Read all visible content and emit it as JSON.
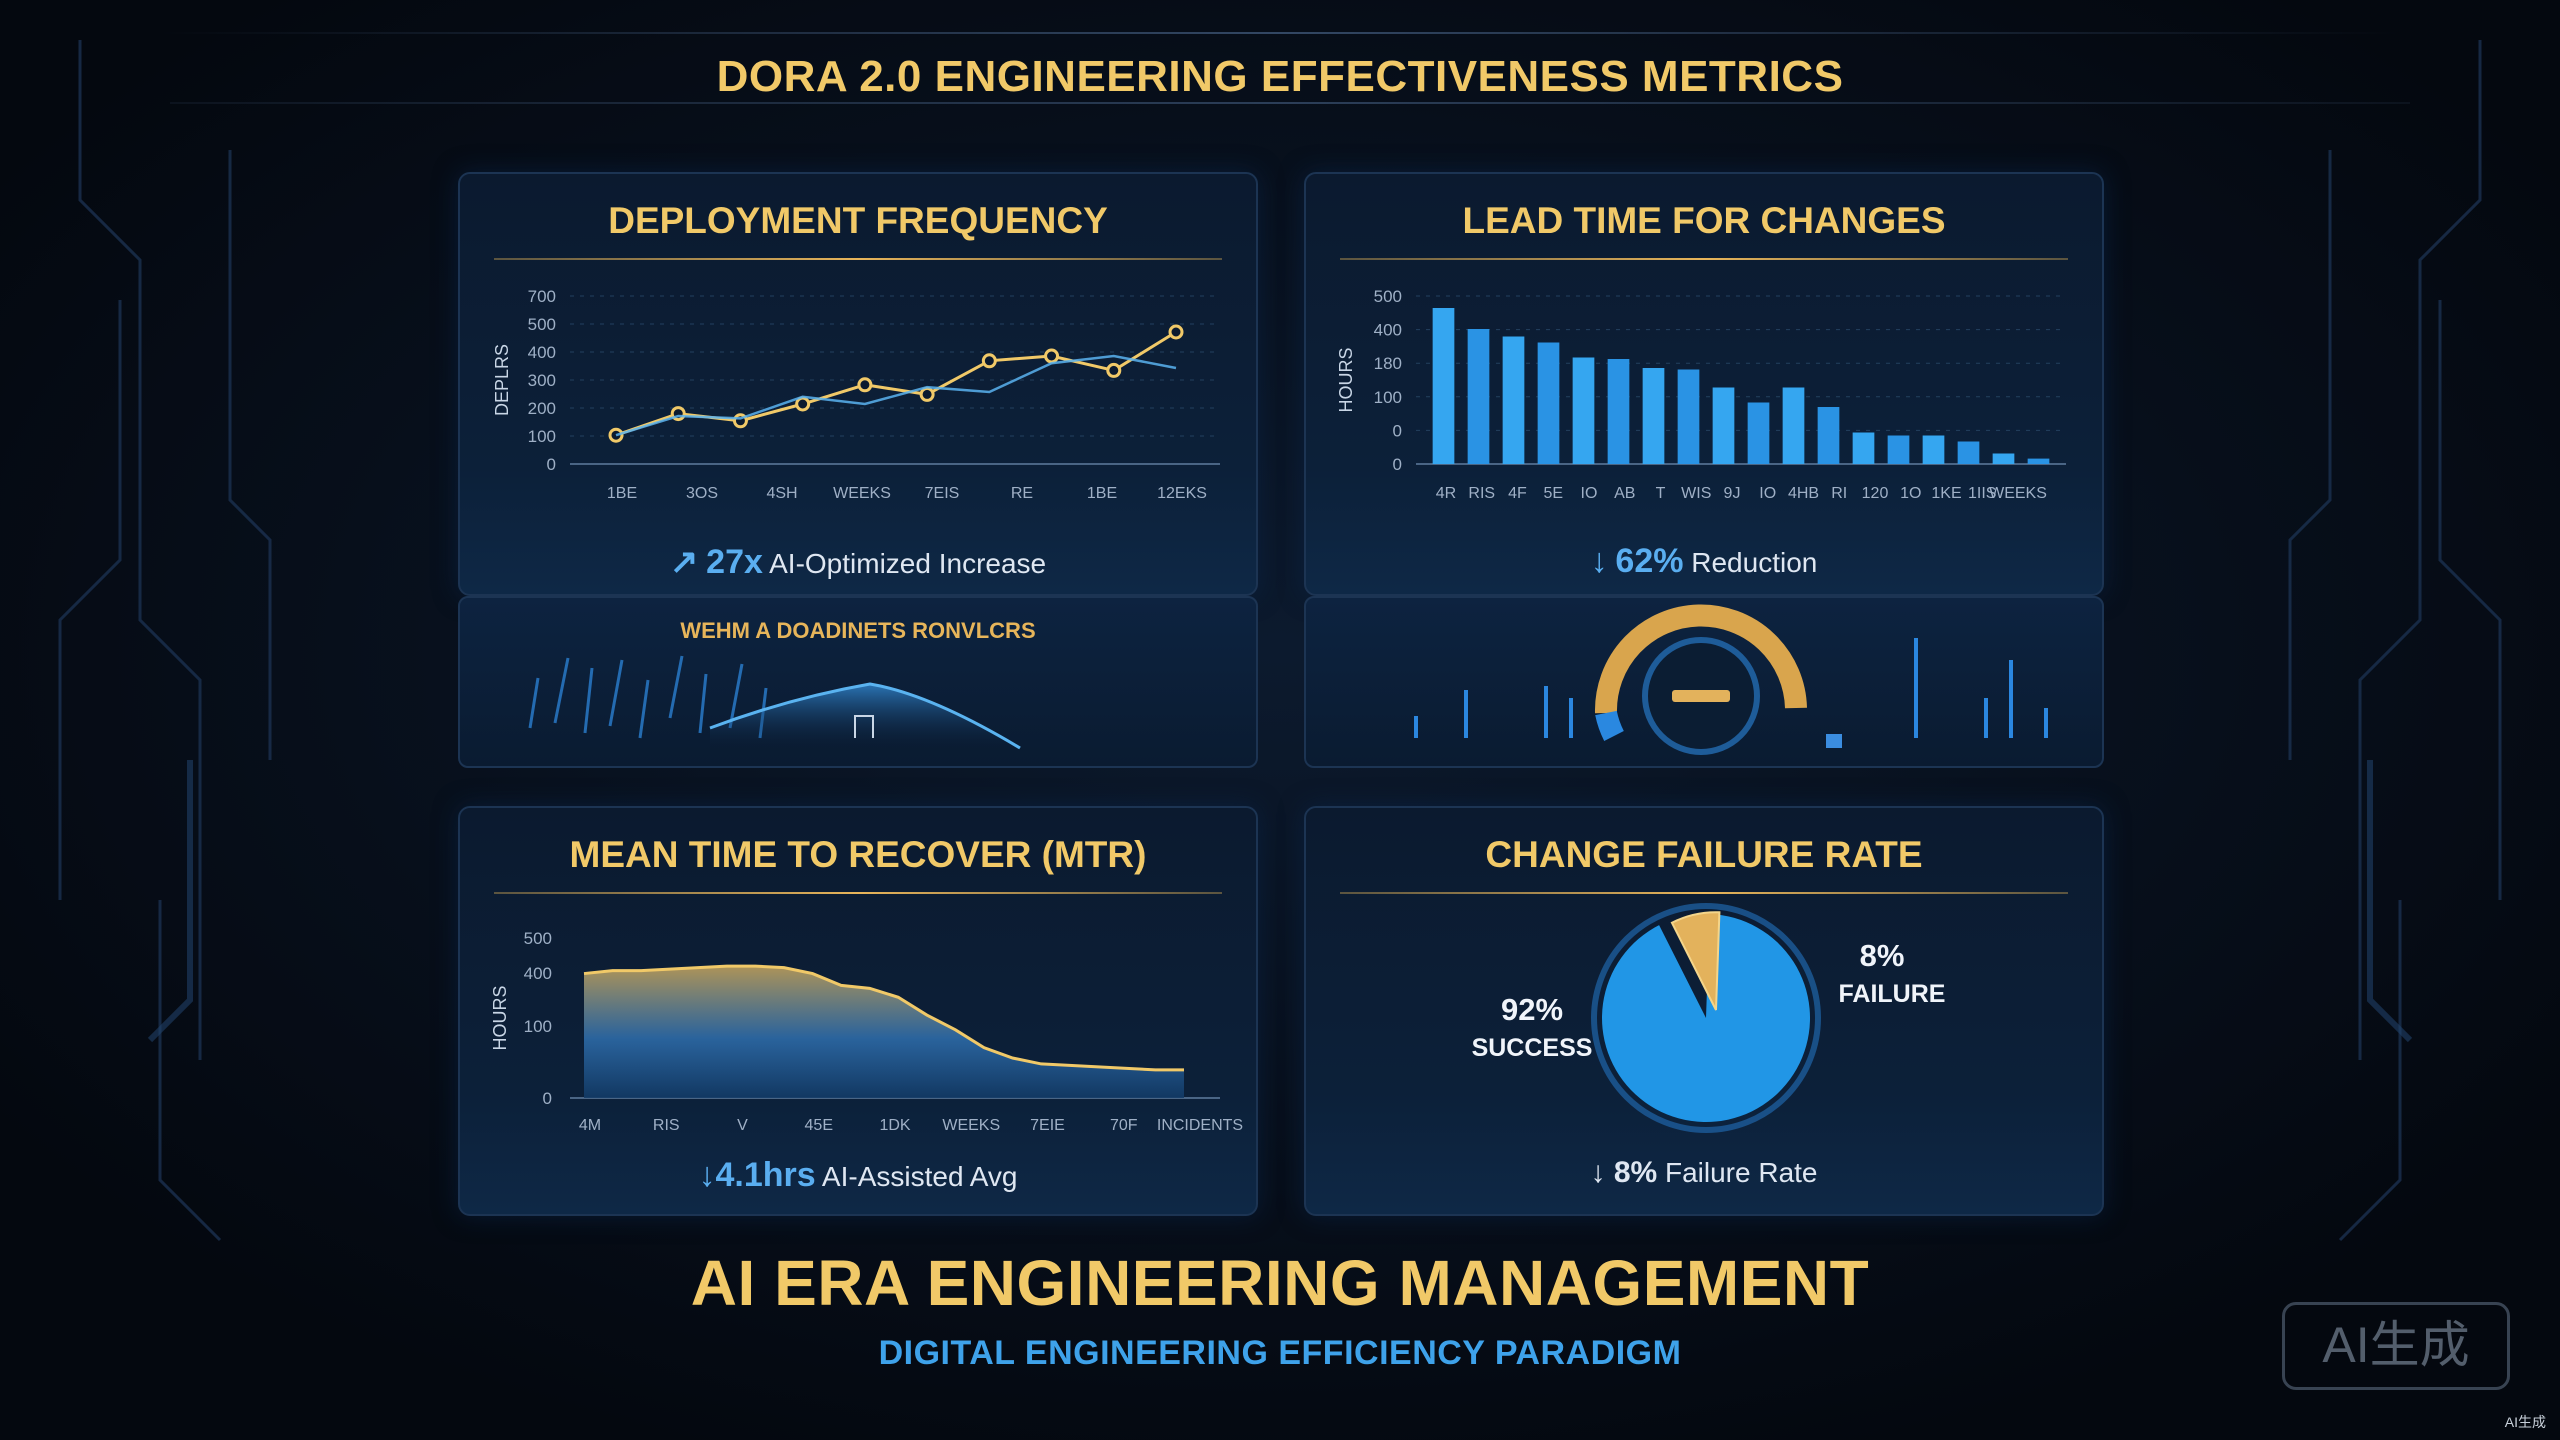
{
  "title": "DORA 2.0 ENGINEERING EFFECTIVENESS METRICS",
  "footer": {
    "title": "AI ERA ENGINEERING MANAGEMENT",
    "subtitle": "DIGITAL ENGINEERING EFFICIENCY PARADIGM"
  },
  "watermark": {
    "badge": "AI生成",
    "corner": "AI生成"
  },
  "colors": {
    "gold": "#f1c968",
    "blue": "#3ea2ea",
    "bg": "#060c16"
  },
  "panels": {
    "deploy": {
      "title": "DEPLOYMENT FREQUENCY",
      "stat_icon": "↗",
      "stat_value": "27x",
      "stat_text": "AI-Optimized Increase",
      "sub_title": "WEHM A DOADINETS RONVLCRS"
    },
    "lead": {
      "title": "LEAD TIME FOR CHANGES",
      "stat_icon": "↓",
      "stat_value": "62%",
      "stat_text": "Reduction"
    },
    "mttr": {
      "title": "MEAN TIME TO RECOVER (MTR)",
      "stat_value": "↓4.1hrs",
      "stat_text": "AI-Assisted Avg"
    },
    "cfr": {
      "title": "CHANGE FAILURE RATE",
      "stat_value": "↓ 8%",
      "stat_text": "Failure Rate"
    }
  },
  "chart_data": [
    {
      "type": "line",
      "ylabel": "DEPLRS",
      "y_ticks": [
        "700",
        "500",
        "400",
        "300",
        "200",
        "100",
        "0"
      ],
      "x_ticks": [
        "1BE",
        "3OS",
        "4SH",
        "WEEKS",
        "7EIS",
        "RE",
        "1BE",
        "12EKS"
      ],
      "series": [
        {
          "values": [
            120,
            210,
            180,
            250,
            330,
            290,
            430,
            450,
            390,
            550
          ]
        },
        {
          "values": [
            120,
            200,
            190,
            280,
            250,
            320,
            300,
            420,
            450,
            400
          ]
        }
      ],
      "ylim": [
        0,
        700
      ],
      "grid": true
    },
    {
      "type": "bar",
      "ylabel": "HOURS",
      "y_ticks": [
        "500",
        "400",
        "180",
        "100",
        "0",
        "0"
      ],
      "x_ticks": [
        "4R",
        "RIS",
        "4F",
        "5E",
        "IO",
        "AB",
        "T",
        "WIS",
        "9J",
        "IO",
        "4HB",
        "RI",
        "120",
        "1O",
        "1KE",
        "1IIS",
        "WEEKS"
      ],
      "values": [
        520,
        450,
        425,
        405,
        355,
        350,
        320,
        315,
        255,
        205,
        255,
        190,
        105,
        95,
        95,
        75,
        35,
        18
      ],
      "ylim": [
        0,
        560
      ],
      "grid": true
    },
    {
      "type": "area",
      "ylabel": "HOURS",
      "y_ticks": [
        "500",
        "400",
        "100",
        "0"
      ],
      "x_ticks": [
        "4M",
        "RIS",
        "V",
        "45E",
        "1DK",
        "WEEKS",
        "7EIE",
        "70F",
        "INCIDENTS"
      ],
      "values": [
        420,
        430,
        430,
        435,
        440,
        445,
        445,
        440,
        420,
        380,
        370,
        340,
        280,
        230,
        170,
        135,
        115,
        110,
        105,
        100,
        95,
        95
      ],
      "ylim": [
        0,
        540
      ],
      "grid": false
    },
    {
      "type": "pie",
      "slices": [
        {
          "label": "SUCCESS",
          "value": 92,
          "display": "92%",
          "color": "#2196e6"
        },
        {
          "label": "FAILURE",
          "value": 8,
          "display": "8%",
          "color": "#e3b25c"
        }
      ]
    }
  ]
}
